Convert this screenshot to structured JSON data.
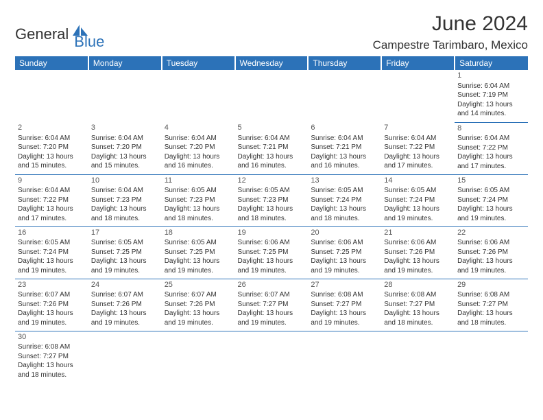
{
  "logo": {
    "part1": "General",
    "part2": "Blue"
  },
  "title": "June 2024",
  "location": "Campestre Tarimbaro, Mexico",
  "colors": {
    "header_bg": "#2c72b8",
    "header_fg": "#ffffff",
    "cell_border": "#2c72b8",
    "text": "#333333",
    "logo_blue": "#2c72b8"
  },
  "weekdays": [
    "Sunday",
    "Monday",
    "Tuesday",
    "Wednesday",
    "Thursday",
    "Friday",
    "Saturday"
  ],
  "grid": [
    [
      {
        "day": null
      },
      {
        "day": null
      },
      {
        "day": null
      },
      {
        "day": null
      },
      {
        "day": null
      },
      {
        "day": null
      },
      {
        "day": 1,
        "sunrise": "6:04 AM",
        "sunset": "7:19 PM",
        "daylight": "13 hours and 14 minutes."
      }
    ],
    [
      {
        "day": 2,
        "sunrise": "6:04 AM",
        "sunset": "7:20 PM",
        "daylight": "13 hours and 15 minutes."
      },
      {
        "day": 3,
        "sunrise": "6:04 AM",
        "sunset": "7:20 PM",
        "daylight": "13 hours and 15 minutes."
      },
      {
        "day": 4,
        "sunrise": "6:04 AM",
        "sunset": "7:20 PM",
        "daylight": "13 hours and 16 minutes."
      },
      {
        "day": 5,
        "sunrise": "6:04 AM",
        "sunset": "7:21 PM",
        "daylight": "13 hours and 16 minutes."
      },
      {
        "day": 6,
        "sunrise": "6:04 AM",
        "sunset": "7:21 PM",
        "daylight": "13 hours and 16 minutes."
      },
      {
        "day": 7,
        "sunrise": "6:04 AM",
        "sunset": "7:22 PM",
        "daylight": "13 hours and 17 minutes."
      },
      {
        "day": 8,
        "sunrise": "6:04 AM",
        "sunset": "7:22 PM",
        "daylight": "13 hours and 17 minutes."
      }
    ],
    [
      {
        "day": 9,
        "sunrise": "6:04 AM",
        "sunset": "7:22 PM",
        "daylight": "13 hours and 17 minutes."
      },
      {
        "day": 10,
        "sunrise": "6:04 AM",
        "sunset": "7:23 PM",
        "daylight": "13 hours and 18 minutes."
      },
      {
        "day": 11,
        "sunrise": "6:05 AM",
        "sunset": "7:23 PM",
        "daylight": "13 hours and 18 minutes."
      },
      {
        "day": 12,
        "sunrise": "6:05 AM",
        "sunset": "7:23 PM",
        "daylight": "13 hours and 18 minutes."
      },
      {
        "day": 13,
        "sunrise": "6:05 AM",
        "sunset": "7:24 PM",
        "daylight": "13 hours and 18 minutes."
      },
      {
        "day": 14,
        "sunrise": "6:05 AM",
        "sunset": "7:24 PM",
        "daylight": "13 hours and 19 minutes."
      },
      {
        "day": 15,
        "sunrise": "6:05 AM",
        "sunset": "7:24 PM",
        "daylight": "13 hours and 19 minutes."
      }
    ],
    [
      {
        "day": 16,
        "sunrise": "6:05 AM",
        "sunset": "7:24 PM",
        "daylight": "13 hours and 19 minutes."
      },
      {
        "day": 17,
        "sunrise": "6:05 AM",
        "sunset": "7:25 PM",
        "daylight": "13 hours and 19 minutes."
      },
      {
        "day": 18,
        "sunrise": "6:05 AM",
        "sunset": "7:25 PM",
        "daylight": "13 hours and 19 minutes."
      },
      {
        "day": 19,
        "sunrise": "6:06 AM",
        "sunset": "7:25 PM",
        "daylight": "13 hours and 19 minutes."
      },
      {
        "day": 20,
        "sunrise": "6:06 AM",
        "sunset": "7:25 PM",
        "daylight": "13 hours and 19 minutes."
      },
      {
        "day": 21,
        "sunrise": "6:06 AM",
        "sunset": "7:26 PM",
        "daylight": "13 hours and 19 minutes."
      },
      {
        "day": 22,
        "sunrise": "6:06 AM",
        "sunset": "7:26 PM",
        "daylight": "13 hours and 19 minutes."
      }
    ],
    [
      {
        "day": 23,
        "sunrise": "6:07 AM",
        "sunset": "7:26 PM",
        "daylight": "13 hours and 19 minutes."
      },
      {
        "day": 24,
        "sunrise": "6:07 AM",
        "sunset": "7:26 PM",
        "daylight": "13 hours and 19 minutes."
      },
      {
        "day": 25,
        "sunrise": "6:07 AM",
        "sunset": "7:26 PM",
        "daylight": "13 hours and 19 minutes."
      },
      {
        "day": 26,
        "sunrise": "6:07 AM",
        "sunset": "7:27 PM",
        "daylight": "13 hours and 19 minutes."
      },
      {
        "day": 27,
        "sunrise": "6:08 AM",
        "sunset": "7:27 PM",
        "daylight": "13 hours and 19 minutes."
      },
      {
        "day": 28,
        "sunrise": "6:08 AM",
        "sunset": "7:27 PM",
        "daylight": "13 hours and 18 minutes."
      },
      {
        "day": 29,
        "sunrise": "6:08 AM",
        "sunset": "7:27 PM",
        "daylight": "13 hours and 18 minutes."
      }
    ],
    [
      {
        "day": 30,
        "sunrise": "6:08 AM",
        "sunset": "7:27 PM",
        "daylight": "13 hours and 18 minutes."
      },
      {
        "day": null
      },
      {
        "day": null
      },
      {
        "day": null
      },
      {
        "day": null
      },
      {
        "day": null
      },
      {
        "day": null
      }
    ]
  ],
  "labels": {
    "sunrise": "Sunrise:",
    "sunset": "Sunset:",
    "daylight": "Daylight:"
  }
}
